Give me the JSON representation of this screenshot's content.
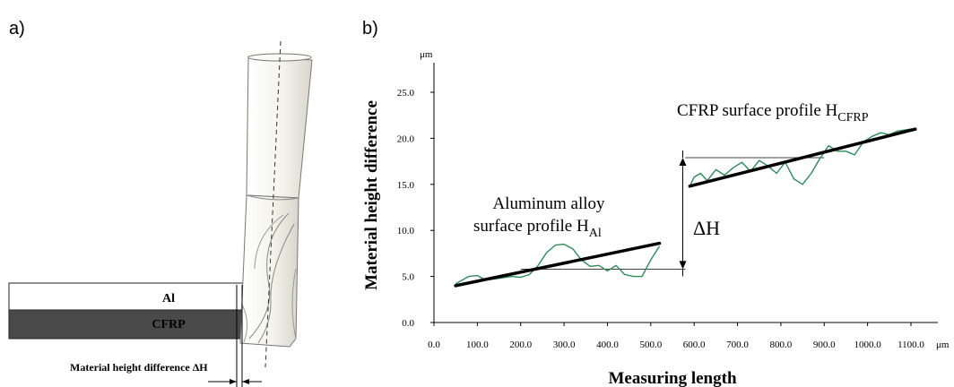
{
  "panel_a": {
    "label": "a)",
    "al_label": "Al",
    "cfrp_label": "CFRP",
    "height_label": "Material height difference ΔH",
    "colors": {
      "al_fill": "#ffffff",
      "cfrp_fill": "#4a4a4a",
      "tool_fill": "#f6f6ee",
      "tool_stroke": "#777777"
    }
  },
  "panel_b": {
    "label": "b)",
    "al_annotation": {
      "line1": "Aluminum alloy",
      "line2": "surface profile H",
      "sub": "Al"
    },
    "cfrp_annotation": {
      "main": "CFRP surface profile H",
      "sub": "CFRP"
    },
    "delta_label": "ΔH"
  },
  "chart_data": {
    "type": "line",
    "xlabel": "Measuring length",
    "ylabel": "Material height difference",
    "x_unit": "μm",
    "y_unit": "μm",
    "xlim": [
      0,
      1100
    ],
    "ylim": [
      0,
      27
    ],
    "x_ticks": [
      "0.0",
      "100.0",
      "200.0",
      "300.0",
      "400.0",
      "500.0",
      "600.0",
      "700.0",
      "800.0",
      "900.0",
      "1000.0",
      "1100.0"
    ],
    "y_ticks": [
      "0.0",
      "5.0",
      "10.0",
      "15.0",
      "20.0",
      "25.0"
    ],
    "colors": {
      "profile": "#2e8b57",
      "fit": "#000000",
      "axis": "#000000"
    },
    "series": [
      {
        "x": [
          50,
          80,
          100,
          120,
          150,
          180,
          200,
          220,
          240,
          260,
          280,
          300,
          320,
          340,
          360,
          380,
          400,
          420,
          440,
          460,
          480,
          500,
          520
        ],
        "values": [
          4.2,
          5.0,
          5.1,
          4.6,
          4.8,
          5.0,
          4.9,
          5.2,
          6.2,
          7.6,
          8.4,
          8.5,
          8.0,
          6.8,
          6.1,
          6.2,
          5.6,
          6.2,
          5.2,
          5.0,
          5.0,
          6.8,
          8.3
        ]
      },
      {
        "x": [
          590,
          600,
          615,
          630,
          650,
          670,
          690,
          710,
          730,
          750,
          770,
          790,
          810,
          830,
          850,
          870,
          890,
          910,
          930,
          950,
          970,
          990,
          1010,
          1030,
          1050,
          1070,
          1100
        ],
        "values": [
          14.8,
          15.8,
          16.2,
          15.4,
          16.6,
          16.0,
          16.8,
          17.4,
          16.4,
          17.6,
          17.0,
          16.2,
          17.4,
          15.6,
          15.0,
          16.2,
          17.8,
          19.2,
          18.6,
          18.6,
          18.2,
          19.6,
          20.2,
          20.6,
          20.4,
          20.8,
          21.0
        ]
      }
    ],
    "fit_lines": [
      {
        "x": [
          50,
          520
        ],
        "values": [
          4.0,
          8.6
        ]
      },
      {
        "x": [
          590,
          1110
        ],
        "values": [
          14.8,
          21.0
        ]
      }
    ],
    "reference_levels": [
      {
        "x": [
          200,
          580
        ],
        "values": [
          5.8,
          5.8
        ]
      },
      {
        "x": [
          580,
          900
        ],
        "values": [
          17.9,
          17.9
        ]
      }
    ],
    "delta_h": {
      "x": 580,
      "from": 5.8,
      "to": 17.9
    }
  }
}
